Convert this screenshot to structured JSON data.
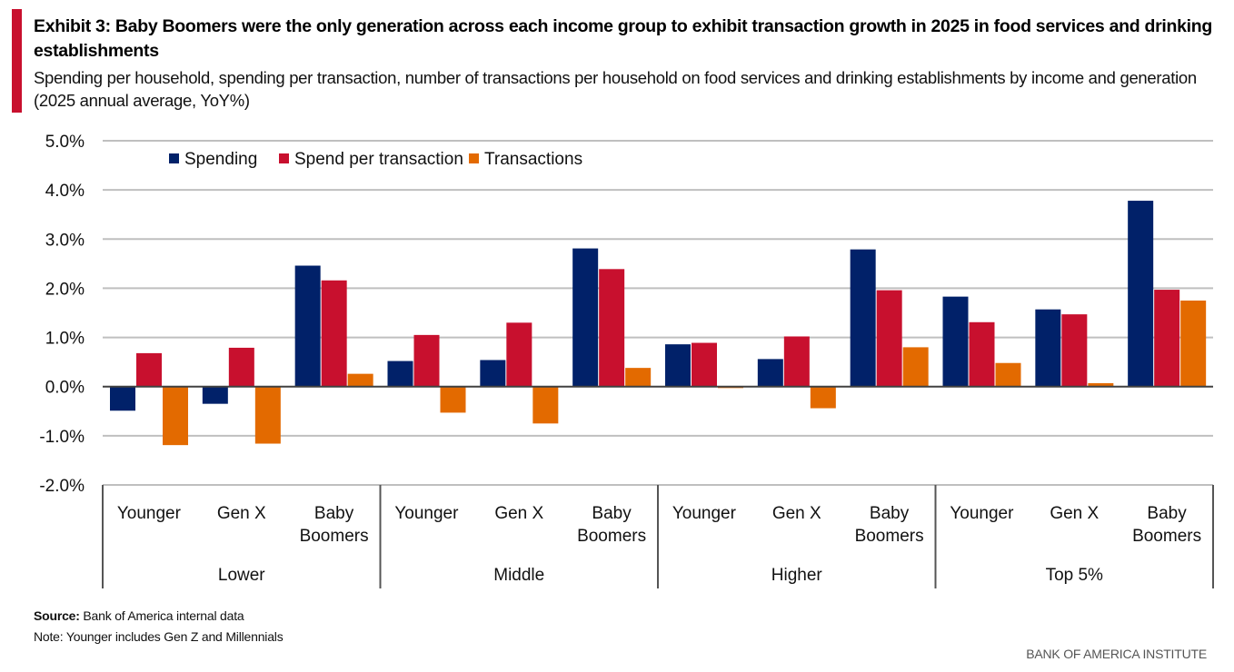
{
  "header": {
    "title": "Exhibit 3: Baby Boomers were the only generation across each income group to exhibit transaction growth in 2025 in food services and drinking establishments",
    "subtitle": "Spending per household, spending per transaction, number of transactions per household on food services and drinking establishments by income and generation (2025 annual average, YoY%)"
  },
  "footer": {
    "source_label": "Source:",
    "source_text": " Bank of America internal data",
    "note": "Note: Younger includes Gen Z and Millennials",
    "brand": "BANK OF AMERICA INSTITUTE"
  },
  "colors": {
    "accent": "#C8102E",
    "spending": "#012169",
    "spend_per_transaction": "#C8102E",
    "transactions": "#E36A00",
    "gridline": "#BFBFBF",
    "zero_line": "#404040"
  },
  "chart_data": {
    "type": "bar",
    "title": "Exhibit 3: Baby Boomers were the only generation across each income group to exhibit transaction growth in 2025 in food services and drinking establishments",
    "xlabel": "",
    "ylabel": "",
    "ylim": [
      -2.0,
      5.0
    ],
    "yticks": [
      -2.0,
      -1.0,
      0.0,
      1.0,
      2.0,
      3.0,
      4.0,
      5.0
    ],
    "ytick_labels": [
      "-2.0%",
      "-1.0%",
      "0.0%",
      "1.0%",
      "2.0%",
      "3.0%",
      "4.0%",
      "5.0%"
    ],
    "grid": true,
    "legend_position": "top-left",
    "groups": [
      "Lower",
      "Middle",
      "Higher",
      "Top 5%"
    ],
    "subcategories": [
      [
        "Younger"
      ],
      [
        "Gen X"
      ],
      [
        "Baby",
        "Boomers"
      ]
    ],
    "categories": [
      "Lower - Younger",
      "Lower - Gen X",
      "Lower - Baby Boomers",
      "Middle - Younger",
      "Middle - Gen X",
      "Middle - Baby Boomers",
      "Higher - Younger",
      "Higher - Gen X",
      "Higher - Baby Boomers",
      "Top 5% - Younger",
      "Top 5% - Gen X",
      "Top 5% - Baby Boomers"
    ],
    "series": [
      {
        "name": "Spending",
        "color_key": "spending",
        "values": [
          -0.49,
          -0.35,
          2.46,
          0.52,
          0.54,
          2.81,
          0.86,
          0.56,
          2.79,
          1.83,
          1.57,
          3.78
        ]
      },
      {
        "name": "Spend per transaction",
        "color_key": "spend_per_transaction",
        "values": [
          0.68,
          0.79,
          2.16,
          1.05,
          1.3,
          2.39,
          0.89,
          1.02,
          1.96,
          1.31,
          1.47,
          1.97
        ]
      },
      {
        "name": "Transactions",
        "color_key": "transactions",
        "values": [
          -1.19,
          -1.16,
          0.26,
          -0.53,
          -0.75,
          0.38,
          -0.03,
          -0.44,
          0.8,
          0.48,
          0.07,
          1.75
        ]
      }
    ]
  }
}
